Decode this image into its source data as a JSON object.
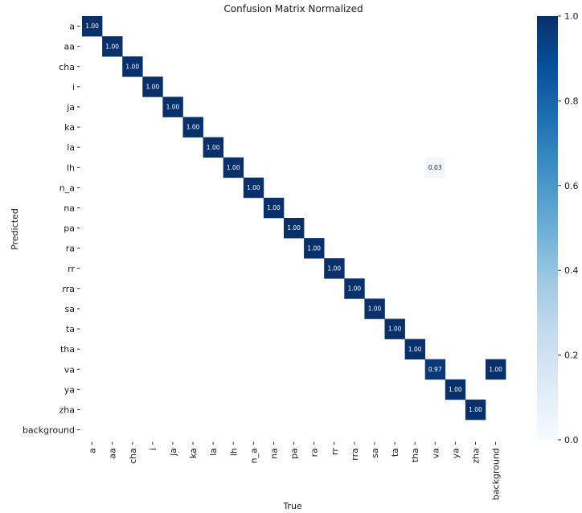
{
  "chart_data": {
    "type": "heatmap",
    "title": "Confusion Matrix Normalized",
    "xlabel": "True",
    "ylabel": "Predicted",
    "categories": [
      "a",
      "aa",
      "cha",
      "i",
      "ja",
      "ka",
      "la",
      "lh",
      "n_a",
      "na",
      "pa",
      "ra",
      "rr",
      "rra",
      "sa",
      "ta",
      "tha",
      "va",
      "ya",
      "zha",
      "background"
    ],
    "cells": [
      {
        "row": 0,
        "col": 0,
        "value": 1.0
      },
      {
        "row": 1,
        "col": 1,
        "value": 1.0
      },
      {
        "row": 2,
        "col": 2,
        "value": 1.0
      },
      {
        "row": 3,
        "col": 3,
        "value": 1.0
      },
      {
        "row": 4,
        "col": 4,
        "value": 1.0
      },
      {
        "row": 5,
        "col": 5,
        "value": 1.0
      },
      {
        "row": 6,
        "col": 6,
        "value": 1.0
      },
      {
        "row": 7,
        "col": 7,
        "value": 1.0
      },
      {
        "row": 7,
        "col": 17,
        "value": 0.03
      },
      {
        "row": 8,
        "col": 8,
        "value": 1.0
      },
      {
        "row": 9,
        "col": 9,
        "value": 1.0
      },
      {
        "row": 10,
        "col": 10,
        "value": 1.0
      },
      {
        "row": 11,
        "col": 11,
        "value": 1.0
      },
      {
        "row": 12,
        "col": 12,
        "value": 1.0
      },
      {
        "row": 13,
        "col": 13,
        "value": 1.0
      },
      {
        "row": 14,
        "col": 14,
        "value": 1.0
      },
      {
        "row": 15,
        "col": 15,
        "value": 1.0
      },
      {
        "row": 16,
        "col": 16,
        "value": 1.0
      },
      {
        "row": 17,
        "col": 17,
        "value": 0.97
      },
      {
        "row": 17,
        "col": 20,
        "value": 1.0
      },
      {
        "row": 18,
        "col": 18,
        "value": 1.0
      },
      {
        "row": 19,
        "col": 19,
        "value": 1.0
      }
    ],
    "colorbar": {
      "range": [
        0,
        1
      ],
      "ticks": [
        "0.0",
        "0.2",
        "0.4",
        "0.6",
        "0.8",
        "1.0"
      ],
      "colormap": "Blues",
      "low_color": "#f7fbff",
      "high_color": "#08306b"
    },
    "grid": false
  }
}
